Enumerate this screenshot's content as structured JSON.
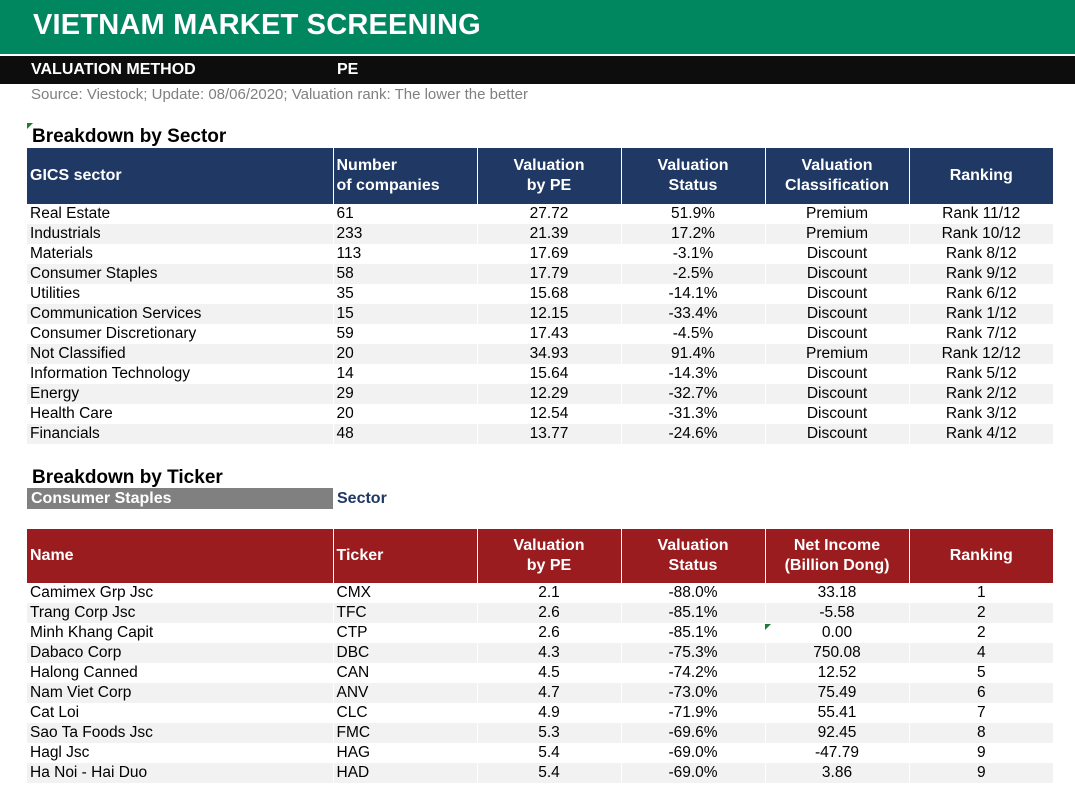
{
  "header": {
    "title": "VIETNAM MARKET SCREENING",
    "method_label": "VALUATION METHOD",
    "method_value": "PE",
    "source": "Source: Viestock; Update: 08/06/2020; Valuation rank: The lower the better"
  },
  "sector_section": {
    "title": "Breakdown by Sector",
    "columns": [
      "GICS sector",
      "Number of companies",
      "Valuation by PE",
      "Valuation Status",
      "Valuation Classification",
      "Ranking"
    ],
    "rows": [
      [
        "Real Estate",
        "61",
        "27.72",
        "51.9%",
        "Premium",
        "Rank 11/12"
      ],
      [
        "Industrials",
        "233",
        "21.39",
        "17.2%",
        "Premium",
        "Rank 10/12"
      ],
      [
        "Materials",
        "113",
        "17.69",
        "-3.1%",
        "Discount",
        "Rank 8/12"
      ],
      [
        "Consumer Staples",
        "58",
        "17.79",
        "-2.5%",
        "Discount",
        "Rank 9/12"
      ],
      [
        "Utilities",
        "35",
        "15.68",
        "-14.1%",
        "Discount",
        "Rank 6/12"
      ],
      [
        "Communication Services",
        "15",
        "12.15",
        "-33.4%",
        "Discount",
        "Rank 1/12"
      ],
      [
        "Consumer Discretionary",
        "59",
        "17.43",
        "-4.5%",
        "Discount",
        "Rank 7/12"
      ],
      [
        "Not Classified",
        "20",
        "34.93",
        "91.4%",
        "Premium",
        "Rank 12/12"
      ],
      [
        "Information Technology",
        "14",
        "15.64",
        "-14.3%",
        "Discount",
        "Rank 5/12"
      ],
      [
        "Energy",
        "29",
        "12.29",
        "-32.7%",
        "Discount",
        "Rank 2/12"
      ],
      [
        "Health Care",
        "20",
        "12.54",
        "-31.3%",
        "Discount",
        "Rank 3/12"
      ],
      [
        "Financials",
        "48",
        "13.77",
        "-24.6%",
        "Discount",
        "Rank 4/12"
      ]
    ]
  },
  "ticker_section": {
    "title": "Breakdown by Ticker",
    "selected_sector": "Consumer Staples",
    "selector_caption": "Sector",
    "columns": [
      "Name",
      "Ticker",
      "Valuation by PE",
      "Valuation Status",
      "Net Income (Billion Dong)",
      "Ranking"
    ],
    "rows": [
      [
        "Camimex Grp Jsc",
        "CMX",
        "2.1",
        "-88.0%",
        "33.18",
        "1"
      ],
      [
        "Trang Corp Jsc",
        "TFC",
        "2.6",
        "-85.1%",
        "-5.58",
        "2"
      ],
      [
        "Minh Khang Capit",
        "CTP",
        "2.6",
        "-85.1%",
        "0.00",
        "2"
      ],
      [
        "Dabaco Corp",
        "DBC",
        "4.3",
        "-75.3%",
        "750.08",
        "4"
      ],
      [
        "Halong Canned",
        "CAN",
        "4.5",
        "-74.2%",
        "12.52",
        "5"
      ],
      [
        "Nam Viet Corp",
        "ANV",
        "4.7",
        "-73.0%",
        "75.49",
        "6"
      ],
      [
        "Cat Loi",
        "CLC",
        "4.9",
        "-71.9%",
        "55.41",
        "7"
      ],
      [
        "Sao Ta Foods Jsc",
        "FMC",
        "5.3",
        "-69.6%",
        "92.45",
        "8"
      ],
      [
        "Hagl Jsc",
        "HAG",
        "5.4",
        "-69.0%",
        "-47.79",
        "9"
      ],
      [
        "Ha Noi - Hai Duo",
        "HAD",
        "5.4",
        "-69.0%",
        "3.86",
        "9"
      ]
    ]
  },
  "colors": {
    "title_bar": "#00875f",
    "method_bar": "#0d0d0d",
    "sector_header": "#1f3864",
    "ticker_header": "#9b1c1f",
    "selector_bg": "#808080",
    "stripe": "#f2f2f2"
  }
}
